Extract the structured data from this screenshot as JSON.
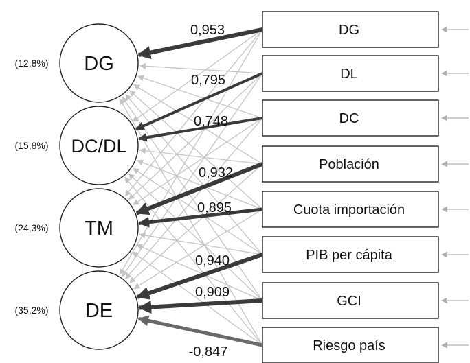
{
  "factors": [
    {
      "name": "DG",
      "variance": "(12,8%)"
    },
    {
      "name": "DC/DL",
      "variance": "(15,8%)"
    },
    {
      "name": "TM",
      "variance": "(24,3%)"
    },
    {
      "name": "DE",
      "variance": "(35,2%)"
    }
  ],
  "indicators": [
    {
      "label": "DG"
    },
    {
      "label": "DL"
    },
    {
      "label": "DC"
    },
    {
      "label": "Población"
    },
    {
      "label": "Cuota importación"
    },
    {
      "label": "PIB per cápita"
    },
    {
      "label": "GCI"
    },
    {
      "label": "Riesgo país"
    }
  ],
  "loadings": [
    {
      "from": 0,
      "to": 0,
      "value": "0,953"
    },
    {
      "from": 1,
      "to": 1,
      "value": "0,795"
    },
    {
      "from": 2,
      "to": 1,
      "value": "0,748"
    },
    {
      "from": 3,
      "to": 2,
      "value": "0,932"
    },
    {
      "from": 4,
      "to": 2,
      "value": "0,895"
    },
    {
      "from": 5,
      "to": 3,
      "value": "0,940"
    },
    {
      "from": 6,
      "to": 3,
      "value": "0,909"
    },
    {
      "from": 7,
      "to": 3,
      "value": "-0,847"
    }
  ],
  "colors": {
    "strong_path": "#3a3a3a",
    "negative_path": "#6a6a6a",
    "faint_path": "#c4c4c4",
    "error_arrow": "#b0b0b0",
    "outline": "#222222"
  }
}
